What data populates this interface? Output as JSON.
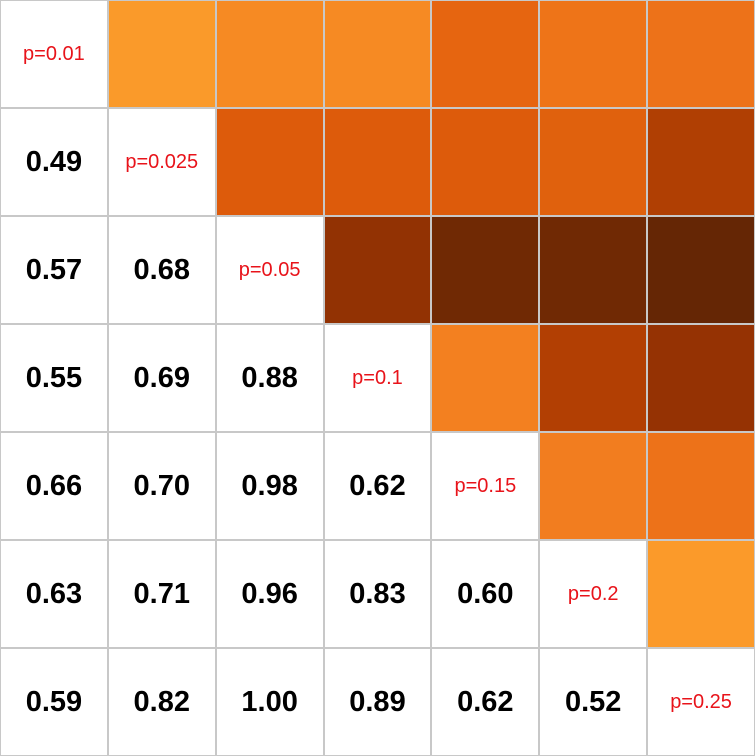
{
  "chart_data": {
    "type": "heatmap",
    "rows": 7,
    "cols": 7,
    "diagonal_labels": [
      "p=0.01",
      "p=0.025",
      "p=0.05",
      "p=0.1",
      "p=0.15",
      "p=0.2",
      "p=0.25"
    ],
    "lower_triangle_text": [
      [],
      [
        "0.49"
      ],
      [
        "0.57",
        "0.68"
      ],
      [
        "0.55",
        "0.69",
        "0.88"
      ],
      [
        "0.66",
        "0.70",
        "0.98",
        "0.62"
      ],
      [
        "0.63",
        "0.71",
        "0.96",
        "0.83",
        "0.60"
      ],
      [
        "0.59",
        "0.82",
        "1.00",
        "0.89",
        "0.62",
        "0.52"
      ]
    ],
    "lower_triangle": [
      [],
      [
        0.49
      ],
      [
        0.57,
        0.68
      ],
      [
        0.55,
        0.69,
        0.88
      ],
      [
        0.66,
        0.7,
        0.98,
        0.62
      ],
      [
        0.63,
        0.71,
        0.96,
        0.83,
        0.6
      ],
      [
        0.59,
        0.82,
        1.0,
        0.89,
        0.62,
        0.52
      ]
    ],
    "upper_triangle_colors": [
      [
        "",
        "#fa9a2a",
        "#f68a23",
        "#f68a23",
        "#e66510",
        "#ee7418",
        "#ed7219"
      ],
      [
        "",
        "",
        "#dd5b0b",
        "#dd5b0b",
        "#dd5b0b",
        "#e0610d",
        "#b03f03"
      ],
      [
        "",
        "",
        "",
        "#923203",
        "#702904",
        "#702904",
        "#652605"
      ],
      [
        "",
        "",
        "",
        "",
        "#f38020",
        "#b23f03",
        "#953203"
      ],
      [
        "",
        "",
        "",
        "",
        "",
        "#f27d1f",
        "#ed7219"
      ],
      [
        "",
        "",
        "",
        "",
        "",
        "",
        "#fb9a2a"
      ],
      [
        "",
        "",
        "",
        "",
        "",
        "",
        ""
      ]
    ]
  }
}
